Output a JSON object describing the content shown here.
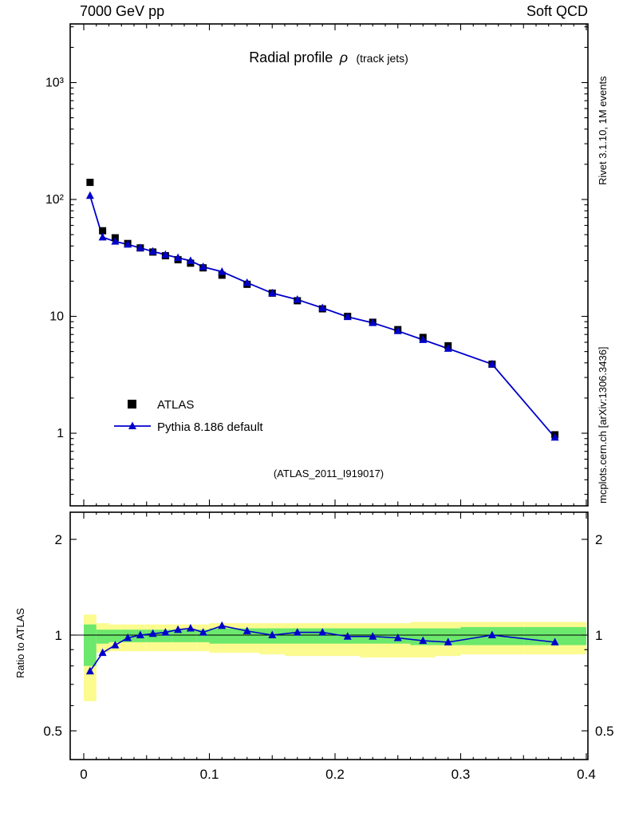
{
  "header": {
    "left": "7000 GeV pp",
    "right": "Soft QCD"
  },
  "side_notes": {
    "top_right": "Rivet 3.1.10,  1M events",
    "bottom_right": "mcplots.cern.ch [arXiv:1306.3436]"
  },
  "main_panel": {
    "title_main": "Radial profile",
    "title_symbol": "ρ",
    "title_suffix": "(track jets)",
    "watermark": "(ATLAS_2011_I919017)",
    "y_axis": {
      "scale": "log",
      "tick_values": [
        1,
        10,
        100,
        1000
      ],
      "tick_labels": [
        "1",
        "10",
        "10²",
        "10³"
      ]
    }
  },
  "ratio_panel": {
    "ylabel": "Ratio to ATLAS",
    "tick_values": [
      0.5,
      1,
      2
    ],
    "tick_labels": [
      "0.5",
      "1",
      "2"
    ]
  },
  "x_axis": {
    "min": 0,
    "max": 0.4,
    "tick_values": [
      0,
      0.1,
      0.2,
      0.3,
      0.4
    ],
    "tick_labels": [
      "0",
      "0.1",
      "0.2",
      "0.3",
      "0.4"
    ]
  },
  "legend": {
    "items": [
      {
        "label": "ATLAS",
        "marker": "square",
        "color": "#000000"
      },
      {
        "label": "Pythia 8.186 default",
        "marker": "triangle-line",
        "color": "#0000cc"
      }
    ]
  },
  "colors": {
    "atlas": "#000000",
    "pythia": "#0000cc",
    "band_yellow": "#fbfb8f",
    "band_green": "#6ce86c",
    "frame": "#000000",
    "gray_text": "#808080",
    "watermark": "#b4b4b4"
  },
  "chart_data": {
    "type": "line",
    "title": "Radial profile ρ (track jets)",
    "xlabel": "",
    "ylabel": "",
    "x": [
      0.005,
      0.015,
      0.025,
      0.035,
      0.045,
      0.055,
      0.065,
      0.075,
      0.085,
      0.095,
      0.11,
      0.13,
      0.15,
      0.17,
      0.19,
      0.21,
      0.23,
      0.25,
      0.27,
      0.29,
      0.325,
      0.375
    ],
    "bin_edges": [
      0,
      0.01,
      0.02,
      0.03,
      0.04,
      0.05,
      0.06,
      0.07,
      0.08,
      0.09,
      0.1,
      0.12,
      0.14,
      0.16,
      0.18,
      0.2,
      0.22,
      0.24,
      0.26,
      0.28,
      0.3,
      0.35,
      0.4
    ],
    "series": [
      {
        "name": "ATLAS",
        "marker": "square",
        "color": "#000000",
        "values": [
          140,
          54,
          47,
          42,
          38.5,
          35.5,
          33,
          30.5,
          28.5,
          26,
          22.5,
          18.8,
          15.8,
          13.6,
          11.6,
          10.0,
          8.9,
          7.7,
          6.6,
          5.6,
          3.9,
          0.97
        ]
      },
      {
        "name": "Pythia 8.186 default",
        "marker": "triangle",
        "color": "#0000cc",
        "values": [
          107.8,
          47.5,
          43.7,
          41.2,
          38.5,
          35.9,
          33.7,
          31.7,
          29.9,
          26.5,
          24.1,
          19.4,
          15.8,
          13.9,
          11.8,
          9.9,
          8.8,
          7.5,
          6.3,
          5.3,
          3.9,
          0.92
        ]
      }
    ],
    "ratio": {
      "label": "Ratio to ATLAS",
      "values": [
        0.77,
        0.88,
        0.93,
        0.98,
        1.0,
        1.01,
        1.02,
        1.04,
        1.05,
        1.02,
        1.07,
        1.03,
        1.0,
        1.02,
        1.02,
        0.99,
        0.99,
        0.98,
        0.96,
        0.95,
        1.0,
        0.95
      ],
      "band_yellow_lo": [
        0.62,
        0.88,
        0.89,
        0.89,
        0.89,
        0.89,
        0.89,
        0.89,
        0.89,
        0.89,
        0.88,
        0.88,
        0.87,
        0.86,
        0.86,
        0.86,
        0.85,
        0.85,
        0.85,
        0.86,
        0.87,
        0.87
      ],
      "band_yellow_hi": [
        1.16,
        1.09,
        1.08,
        1.08,
        1.08,
        1.08,
        1.08,
        1.08,
        1.08,
        1.08,
        1.09,
        1.09,
        1.09,
        1.09,
        1.09,
        1.09,
        1.09,
        1.09,
        1.1,
        1.1,
        1.1,
        1.1
      ],
      "band_green_lo": [
        0.8,
        0.94,
        0.95,
        0.95,
        0.95,
        0.95,
        0.95,
        0.95,
        0.95,
        0.95,
        0.94,
        0.94,
        0.94,
        0.94,
        0.94,
        0.94,
        0.94,
        0.94,
        0.93,
        0.93,
        0.93,
        0.93
      ],
      "band_green_hi": [
        1.08,
        1.04,
        1.04,
        1.04,
        1.04,
        1.04,
        1.04,
        1.04,
        1.04,
        1.04,
        1.05,
        1.05,
        1.05,
        1.05,
        1.05,
        1.05,
        1.05,
        1.05,
        1.05,
        1.05,
        1.06,
        1.06
      ]
    },
    "axes": {
      "x": {
        "min": 0,
        "max": 0.4,
        "grid": false
      },
      "y": {
        "scale": "log",
        "min": 0.24,
        "max": 3100,
        "grid": false
      },
      "ratio_y": {
        "scale": "log",
        "min": 0.41,
        "max": 2.43
      }
    },
    "legend_position": "lower-left-of-main-panel"
  }
}
